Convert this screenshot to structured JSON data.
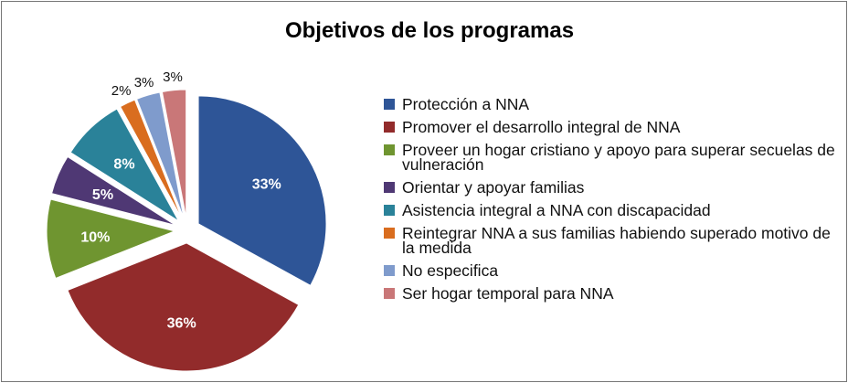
{
  "chart_data": {
    "type": "pie",
    "title": "Objetivos de los programas",
    "categories": [
      "Protección a NNA",
      "Promover el desarrollo integral de NNA",
      "Proveer un hogar cristiano y apoyo para superar secuelas de vulneración",
      "Orientar y apoyar familias",
      "Asistencia integral a NNA con discapacidad",
      "Reintegrar NNA a sus familias habiendo superado motivo de la medida",
      "No especifica",
      "Ser hogar temporal para NNA"
    ],
    "values": [
      33,
      36,
      10,
      5,
      8,
      2,
      3,
      3
    ],
    "value_labels": [
      "33%",
      "36%",
      "10%",
      "5%",
      "8%",
      "2%",
      "3%",
      "3%"
    ],
    "colors": [
      "#2e5597",
      "#922b2b",
      "#6f9530",
      "#4f3874",
      "#2a8299",
      "#d96d1f",
      "#7f9bcc",
      "#c97778"
    ],
    "legend": "right"
  }
}
